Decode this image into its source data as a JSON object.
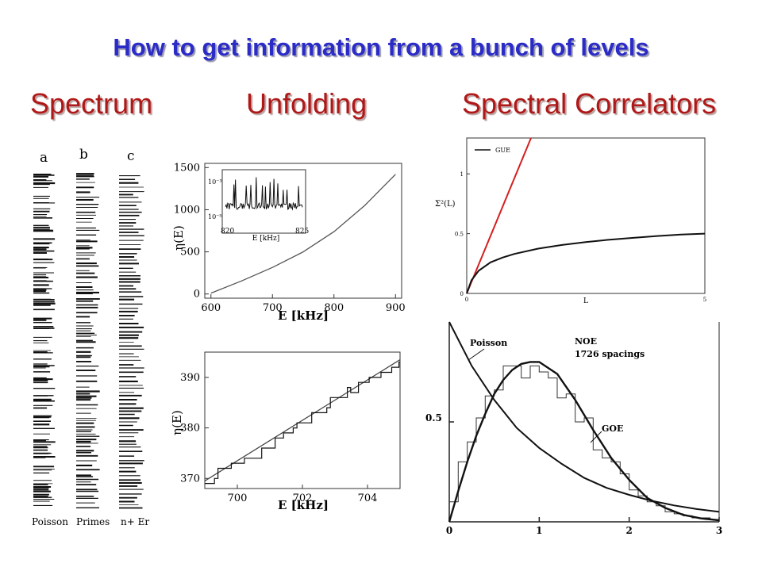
{
  "title": "How to get information from a bunch of levels",
  "headers": [
    "Spectrum",
    "Unfolding",
    "Spectral Correlators"
  ],
  "colors": {
    "title": "#2b2bc8",
    "headers": "#b01818",
    "gue_line": "#d42020",
    "ink": "#111111"
  },
  "chart_data": [
    {
      "type": "spectrum-columns",
      "column_top_labels": [
        "a",
        "b",
        "c"
      ],
      "column_bottom_labels": [
        "Poisson",
        "Primes",
        "n+ Er"
      ]
    },
    {
      "type": "line",
      "xlabel": "E [kHz]",
      "ylabel": "η(E)",
      "xlim": [
        590,
        910
      ],
      "ylim": [
        -50,
        1550
      ],
      "xticks": [
        600,
        700,
        800,
        900
      ],
      "yticks": [
        0,
        500,
        1000,
        1500
      ],
      "x": [
        600,
        650,
        700,
        750,
        800,
        850,
        900
      ],
      "y": [
        10,
        155,
        315,
        500,
        740,
        1050,
        1420
      ],
      "inset": {
        "xlabel": "E [kHz]",
        "xticks": [
          "820",
          "825"
        ],
        "ytick_labels": [
          "10⁻³",
          "10⁻⁵"
        ]
      }
    },
    {
      "type": "line",
      "xlabel": "E [kHz]",
      "ylabel": "η(E)",
      "xlim": [
        699,
        705
      ],
      "ylim": [
        368,
        395
      ],
      "xticks": [
        700,
        702,
        704
      ],
      "yticks": [
        370,
        380,
        390
      ],
      "smooth": {
        "x": [
          699,
          705
        ],
        "y": [
          369.5,
          393.5
        ]
      }
    },
    {
      "type": "line",
      "xlabel": "L",
      "ylabel": "Σ²(L)",
      "xlim": [
        0,
        5
      ],
      "ylim": [
        0,
        1.3
      ],
      "xticks": [
        0,
        5
      ],
      "yticks": [
        0,
        0.5,
        1
      ],
      "legend": "GUE",
      "series": [
        {
          "x": [
            0,
            1.35
          ],
          "y": [
            0,
            1.3
          ]
        },
        {
          "x": [
            0,
            0.1,
            0.25,
            0.5,
            0.75,
            1,
            1.5,
            2,
            2.5,
            3,
            3.5,
            4,
            4.5,
            5
          ],
          "y": [
            0,
            0.11,
            0.19,
            0.26,
            0.3,
            0.33,
            0.375,
            0.405,
            0.43,
            0.45,
            0.465,
            0.48,
            0.492,
            0.5
          ]
        }
      ]
    },
    {
      "type": "line",
      "xlim": [
        0,
        3
      ],
      "ylim": [
        0,
        1.0
      ],
      "xticks": [
        0,
        1,
        2,
        3
      ],
      "yticks": [
        0.5
      ],
      "series": [
        {
          "name": "Poisson",
          "x": [
            0,
            0.25,
            0.5,
            0.75,
            1,
            1.25,
            1.5,
            1.75,
            2,
            2.25,
            2.5,
            2.75,
            3
          ],
          "y": [
            1,
            0.78,
            0.61,
            0.47,
            0.37,
            0.29,
            0.22,
            0.17,
            0.135,
            0.105,
            0.082,
            0.064,
            0.05
          ]
        },
        {
          "name": "GOE",
          "x": [
            0,
            0.1,
            0.2,
            0.3,
            0.4,
            0.5,
            0.6,
            0.7,
            0.8,
            0.9,
            1.0,
            1.2,
            1.4,
            1.6,
            1.8,
            2.0,
            2.2,
            2.4,
            2.6,
            2.8,
            3.0
          ],
          "y": [
            0,
            0.154,
            0.3,
            0.43,
            0.54,
            0.64,
            0.71,
            0.76,
            0.79,
            0.8,
            0.8,
            0.74,
            0.61,
            0.46,
            0.32,
            0.21,
            0.12,
            0.07,
            0.035,
            0.017,
            0.008
          ]
        },
        {
          "name": "histogram",
          "x": [
            0.05,
            0.15,
            0.25,
            0.35,
            0.45,
            0.55,
            0.65,
            0.75,
            0.85,
            0.95,
            1.05,
            1.15,
            1.25,
            1.35,
            1.45,
            1.55,
            1.65,
            1.75,
            1.85,
            1.95,
            2.05,
            2.15,
            2.25,
            2.35,
            2.45,
            2.55,
            2.65,
            2.75,
            2.85,
            2.95
          ],
          "y": [
            0.1,
            0.3,
            0.4,
            0.52,
            0.63,
            0.66,
            0.78,
            0.78,
            0.72,
            0.78,
            0.75,
            0.72,
            0.62,
            0.64,
            0.5,
            0.52,
            0.36,
            0.32,
            0.3,
            0.24,
            0.16,
            0.13,
            0.1,
            0.08,
            0.05,
            0.04,
            0.03,
            0.02,
            0.02,
            0.01
          ]
        }
      ],
      "annotations": [
        "Poisson",
        "NOE",
        "1726 spacings",
        "GOE"
      ],
      "ytick_labels": [
        "0.5"
      ]
    }
  ]
}
